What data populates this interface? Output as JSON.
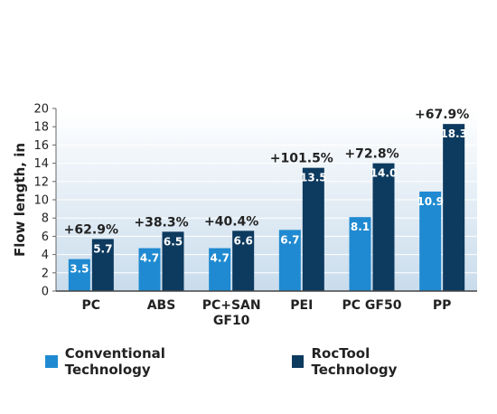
{
  "chart_data": {
    "type": "bar",
    "ylabel": "Flow length, in",
    "ylim": [
      0,
      20
    ],
    "yticks": [
      0,
      2,
      4,
      6,
      8,
      10,
      12,
      14,
      16,
      18,
      20
    ],
    "categories": [
      [
        "PC"
      ],
      [
        "ABS"
      ],
      [
        "PC+SAN",
        "GF10"
      ],
      [
        "PEI"
      ],
      [
        "PC GF50"
      ],
      [
        "PP"
      ]
    ],
    "series": [
      {
        "name": "Conventional Technology",
        "color": "#1f8ad1",
        "values": [
          3.5,
          4.7,
          4.7,
          6.7,
          8.1,
          10.9
        ],
        "labels": [
          "3.5",
          "4.7",
          "4.7",
          "6.7",
          "8.1",
          "10.9"
        ]
      },
      {
        "name": "RocTool Technology",
        "color": "#0d3a5f",
        "values": [
          5.7,
          6.5,
          6.6,
          13.5,
          14.0,
          18.3
        ],
        "labels": [
          "5.7",
          "6.5",
          "6.6",
          "13.5",
          "14.0",
          "18.3"
        ]
      }
    ],
    "annotations": [
      "+62.9%",
      "+38.3%",
      "+40.4%",
      "+101.5%",
      "+72.8%",
      "+67.9%"
    ],
    "grid": true,
    "legend": "bottom"
  }
}
